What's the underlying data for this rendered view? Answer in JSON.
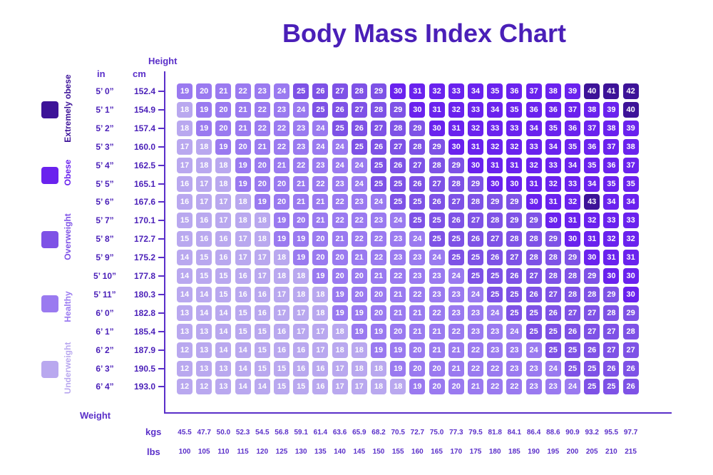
{
  "colors": {
    "underweight": "#b9a8ef",
    "healthy": "#9a7af0",
    "overweight": "#7e52e6",
    "obese": "#6a22ee",
    "extremely_obese": "#3d1398"
  },
  "chart_data": {
    "type": "heatmap",
    "title": "Body Mass Index Chart",
    "ylabel": "Height",
    "xlabel": "Weight",
    "y_unit_labels": [
      "in",
      "cm"
    ],
    "x_unit_labels": [
      "kgs",
      "lbs"
    ],
    "heights_in": [
      "5’ 0”",
      "5’ 1”",
      "5’ 2”",
      "5’ 3”",
      "5’ 4”",
      "5’ 5”",
      "5’ 6”",
      "5’ 7”",
      "5’ 8”",
      "5’ 9”",
      "5’ 10”",
      "5’ 11”",
      "6’ 0”",
      "6’ 1”",
      "6’ 2”",
      "6’ 3”",
      "6’ 4”"
    ],
    "heights_cm": [
      "152.4",
      "154.9",
      "157.4",
      "160.0",
      "162.5",
      "165.1",
      "167.6",
      "170.1",
      "172.7",
      "175.2",
      "177.8",
      "180.3",
      "182.8",
      "185.4",
      "187.9",
      "190.5",
      "193.0"
    ],
    "weights_kg": [
      "45.5",
      "47.7",
      "50.0",
      "52.3",
      "54.5",
      "56.8",
      "59.1",
      "61.4",
      "63.6",
      "65.9",
      "68.2",
      "70.5",
      "72.7",
      "75.0",
      "77.3",
      "79.5",
      "81.8",
      "84.1",
      "86.4",
      "88.6",
      "90.9",
      "93.2",
      "95.5",
      "97.7"
    ],
    "weights_lb": [
      "100",
      "105",
      "110",
      "115",
      "120",
      "125",
      "130",
      "135",
      "140",
      "145",
      "150",
      "155",
      "160",
      "165",
      "170",
      "175",
      "180",
      "185",
      "190",
      "195",
      "200",
      "205",
      "210",
      "215"
    ],
    "values": [
      [
        19,
        20,
        21,
        22,
        23,
        24,
        25,
        26,
        27,
        28,
        29,
        30,
        31,
        32,
        33,
        34,
        35,
        36,
        37,
        38,
        39,
        40,
        41,
        42
      ],
      [
        18,
        19,
        20,
        21,
        22,
        23,
        24,
        25,
        26,
        27,
        28,
        29,
        30,
        31,
        32,
        33,
        34,
        35,
        36,
        36,
        37,
        38,
        39,
        40
      ],
      [
        18,
        19,
        20,
        21,
        22,
        22,
        23,
        24,
        25,
        26,
        27,
        28,
        29,
        30,
        31,
        32,
        33,
        33,
        34,
        35,
        36,
        37,
        38,
        39
      ],
      [
        17,
        18,
        19,
        20,
        21,
        22,
        23,
        24,
        24,
        25,
        26,
        27,
        28,
        29,
        30,
        31,
        32,
        32,
        33,
        34,
        35,
        36,
        37,
        38
      ],
      [
        17,
        18,
        18,
        19,
        20,
        21,
        22,
        23,
        24,
        24,
        25,
        26,
        27,
        28,
        29,
        30,
        31,
        31,
        32,
        33,
        34,
        35,
        36,
        37
      ],
      [
        16,
        17,
        18,
        19,
        20,
        20,
        21,
        22,
        23,
        24,
        25,
        25,
        26,
        27,
        28,
        29,
        30,
        30,
        31,
        32,
        33,
        34,
        35,
        35
      ],
      [
        16,
        17,
        17,
        18,
        19,
        20,
        21,
        21,
        22,
        23,
        24,
        25,
        25,
        26,
        27,
        28,
        29,
        29,
        30,
        31,
        32,
        43,
        34,
        34
      ],
      [
        15,
        16,
        17,
        18,
        18,
        19,
        20,
        21,
        22,
        22,
        23,
        24,
        25,
        25,
        26,
        27,
        28,
        29,
        29,
        30,
        31,
        32,
        33,
        33
      ],
      [
        15,
        16,
        16,
        17,
        18,
        19,
        19,
        20,
        21,
        22,
        22,
        23,
        24,
        25,
        25,
        26,
        27,
        28,
        28,
        29,
        30,
        31,
        32,
        32
      ],
      [
        14,
        15,
        16,
        17,
        17,
        18,
        19,
        20,
        20,
        21,
        22,
        23,
        23,
        24,
        25,
        25,
        26,
        27,
        28,
        28,
        29,
        30,
        31,
        31
      ],
      [
        14,
        15,
        15,
        16,
        17,
        18,
        18,
        19,
        20,
        20,
        21,
        22,
        23,
        23,
        24,
        25,
        25,
        26,
        27,
        28,
        28,
        29,
        30,
        30
      ],
      [
        14,
        14,
        15,
        16,
        16,
        17,
        18,
        18,
        19,
        20,
        20,
        21,
        22,
        23,
        23,
        24,
        25,
        25,
        26,
        27,
        28,
        28,
        29,
        30
      ],
      [
        13,
        14,
        14,
        15,
        16,
        17,
        17,
        18,
        19,
        19,
        20,
        21,
        21,
        22,
        23,
        23,
        24,
        25,
        25,
        26,
        27,
        27,
        28,
        29
      ],
      [
        13,
        13,
        14,
        15,
        15,
        16,
        17,
        17,
        18,
        19,
        19,
        20,
        21,
        21,
        22,
        23,
        23,
        24,
        25,
        25,
        26,
        27,
        27,
        28
      ],
      [
        12,
        13,
        14,
        14,
        15,
        16,
        16,
        17,
        18,
        18,
        19,
        19,
        20,
        21,
        21,
        22,
        23,
        23,
        24,
        25,
        25,
        26,
        27,
        27
      ],
      [
        12,
        13,
        13,
        14,
        15,
        15,
        16,
        16,
        17,
        18,
        18,
        19,
        20,
        20,
        21,
        22,
        22,
        23,
        23,
        24,
        25,
        25,
        26,
        26
      ],
      [
        12,
        12,
        13,
        14,
        14,
        15,
        15,
        16,
        17,
        17,
        18,
        18,
        19,
        20,
        20,
        21,
        22,
        22,
        23,
        23,
        24,
        25,
        25,
        26
      ]
    ],
    "category_rules": {
      "underweight_max": 18,
      "healthy_max": 24,
      "overweight_max": 29,
      "obese_max": 39
    },
    "legend": [
      {
        "name": "Extremely obese",
        "color_key": "extremely_obese"
      },
      {
        "name": "Obese",
        "color_key": "obese"
      },
      {
        "name": "Overweight",
        "color_key": "overweight"
      },
      {
        "name": "Healthy",
        "color_key": "healthy"
      },
      {
        "name": "Underweight",
        "color_key": "underweight"
      }
    ]
  }
}
